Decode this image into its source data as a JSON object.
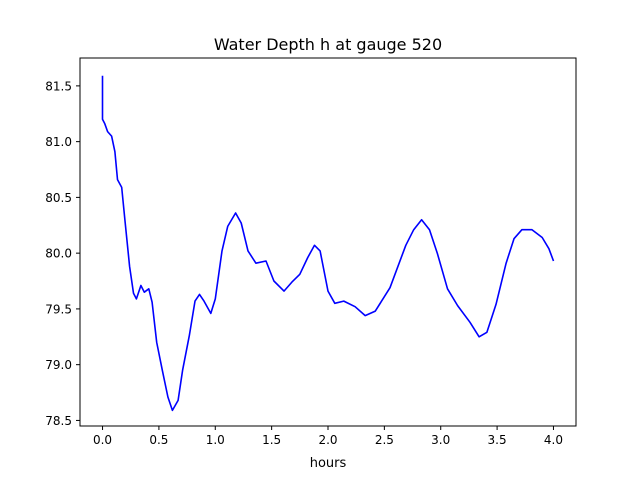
{
  "chart_data": {
    "type": "line",
    "title": "Water Depth h at gauge 520",
    "xlabel": "hours",
    "ylabel": "",
    "xlim": [
      -0.2,
      4.2
    ],
    "ylim": [
      78.45,
      81.75
    ],
    "xticks": [
      0.0,
      0.5,
      1.0,
      1.5,
      2.0,
      2.5,
      3.0,
      3.5,
      4.0
    ],
    "xtick_labels": [
      "0.0",
      "0.5",
      "1.0",
      "1.5",
      "2.0",
      "2.5",
      "3.0",
      "3.5",
      "4.0"
    ],
    "yticks": [
      78.5,
      79.0,
      79.5,
      80.0,
      80.5,
      81.0,
      81.5
    ],
    "ytick_labels": [
      "78.5",
      "79.0",
      "79.5",
      "80.0",
      "80.5",
      "81.0",
      "81.5"
    ],
    "grid": false,
    "series": [
      {
        "name": "h",
        "color": "#0000ff",
        "x": [
          0,
          0,
          0.02,
          0.045,
          0.08,
          0.11,
          0.133,
          0.17,
          0.2,
          0.24,
          0.275,
          0.3,
          0.34,
          0.37,
          0.41,
          0.44,
          0.48,
          0.53,
          0.58,
          0.62,
          0.67,
          0.71,
          0.77,
          0.82,
          0.86,
          0.9,
          0.96,
          1.0,
          1.06,
          1.11,
          1.18,
          1.23,
          1.29,
          1.36,
          1.45,
          1.52,
          1.61,
          1.68,
          1.75,
          1.82,
          1.88,
          1.93,
          2.0,
          2.06,
          2.14,
          2.24,
          2.33,
          2.42,
          2.55,
          2.69,
          2.76,
          2.83,
          2.9,
          2.97,
          3.06,
          3.15,
          3.26,
          3.34,
          3.41,
          3.49,
          3.58,
          3.65,
          3.72,
          3.81,
          3.9,
          3.96,
          4.0
        ],
        "y": [
          81.59,
          81.2,
          81.16,
          81.09,
          81.05,
          80.91,
          80.66,
          80.59,
          80.28,
          79.88,
          79.64,
          79.59,
          79.71,
          79.65,
          79.68,
          79.56,
          79.2,
          78.95,
          78.71,
          78.59,
          78.68,
          78.95,
          79.26,
          79.57,
          79.63,
          79.57,
          79.46,
          79.59,
          80.02,
          80.24,
          80.36,
          80.27,
          80.02,
          79.91,
          79.93,
          79.75,
          79.66,
          79.74,
          79.81,
          79.96,
          80.07,
          80.02,
          79.66,
          79.55,
          79.57,
          79.52,
          79.44,
          79.48,
          79.69,
          80.07,
          80.21,
          80.3,
          80.21,
          80.0,
          79.68,
          79.53,
          79.38,
          79.25,
          79.29,
          79.54,
          79.91,
          80.13,
          80.21,
          80.21,
          80.14,
          80.04,
          79.93
        ]
      }
    ]
  }
}
